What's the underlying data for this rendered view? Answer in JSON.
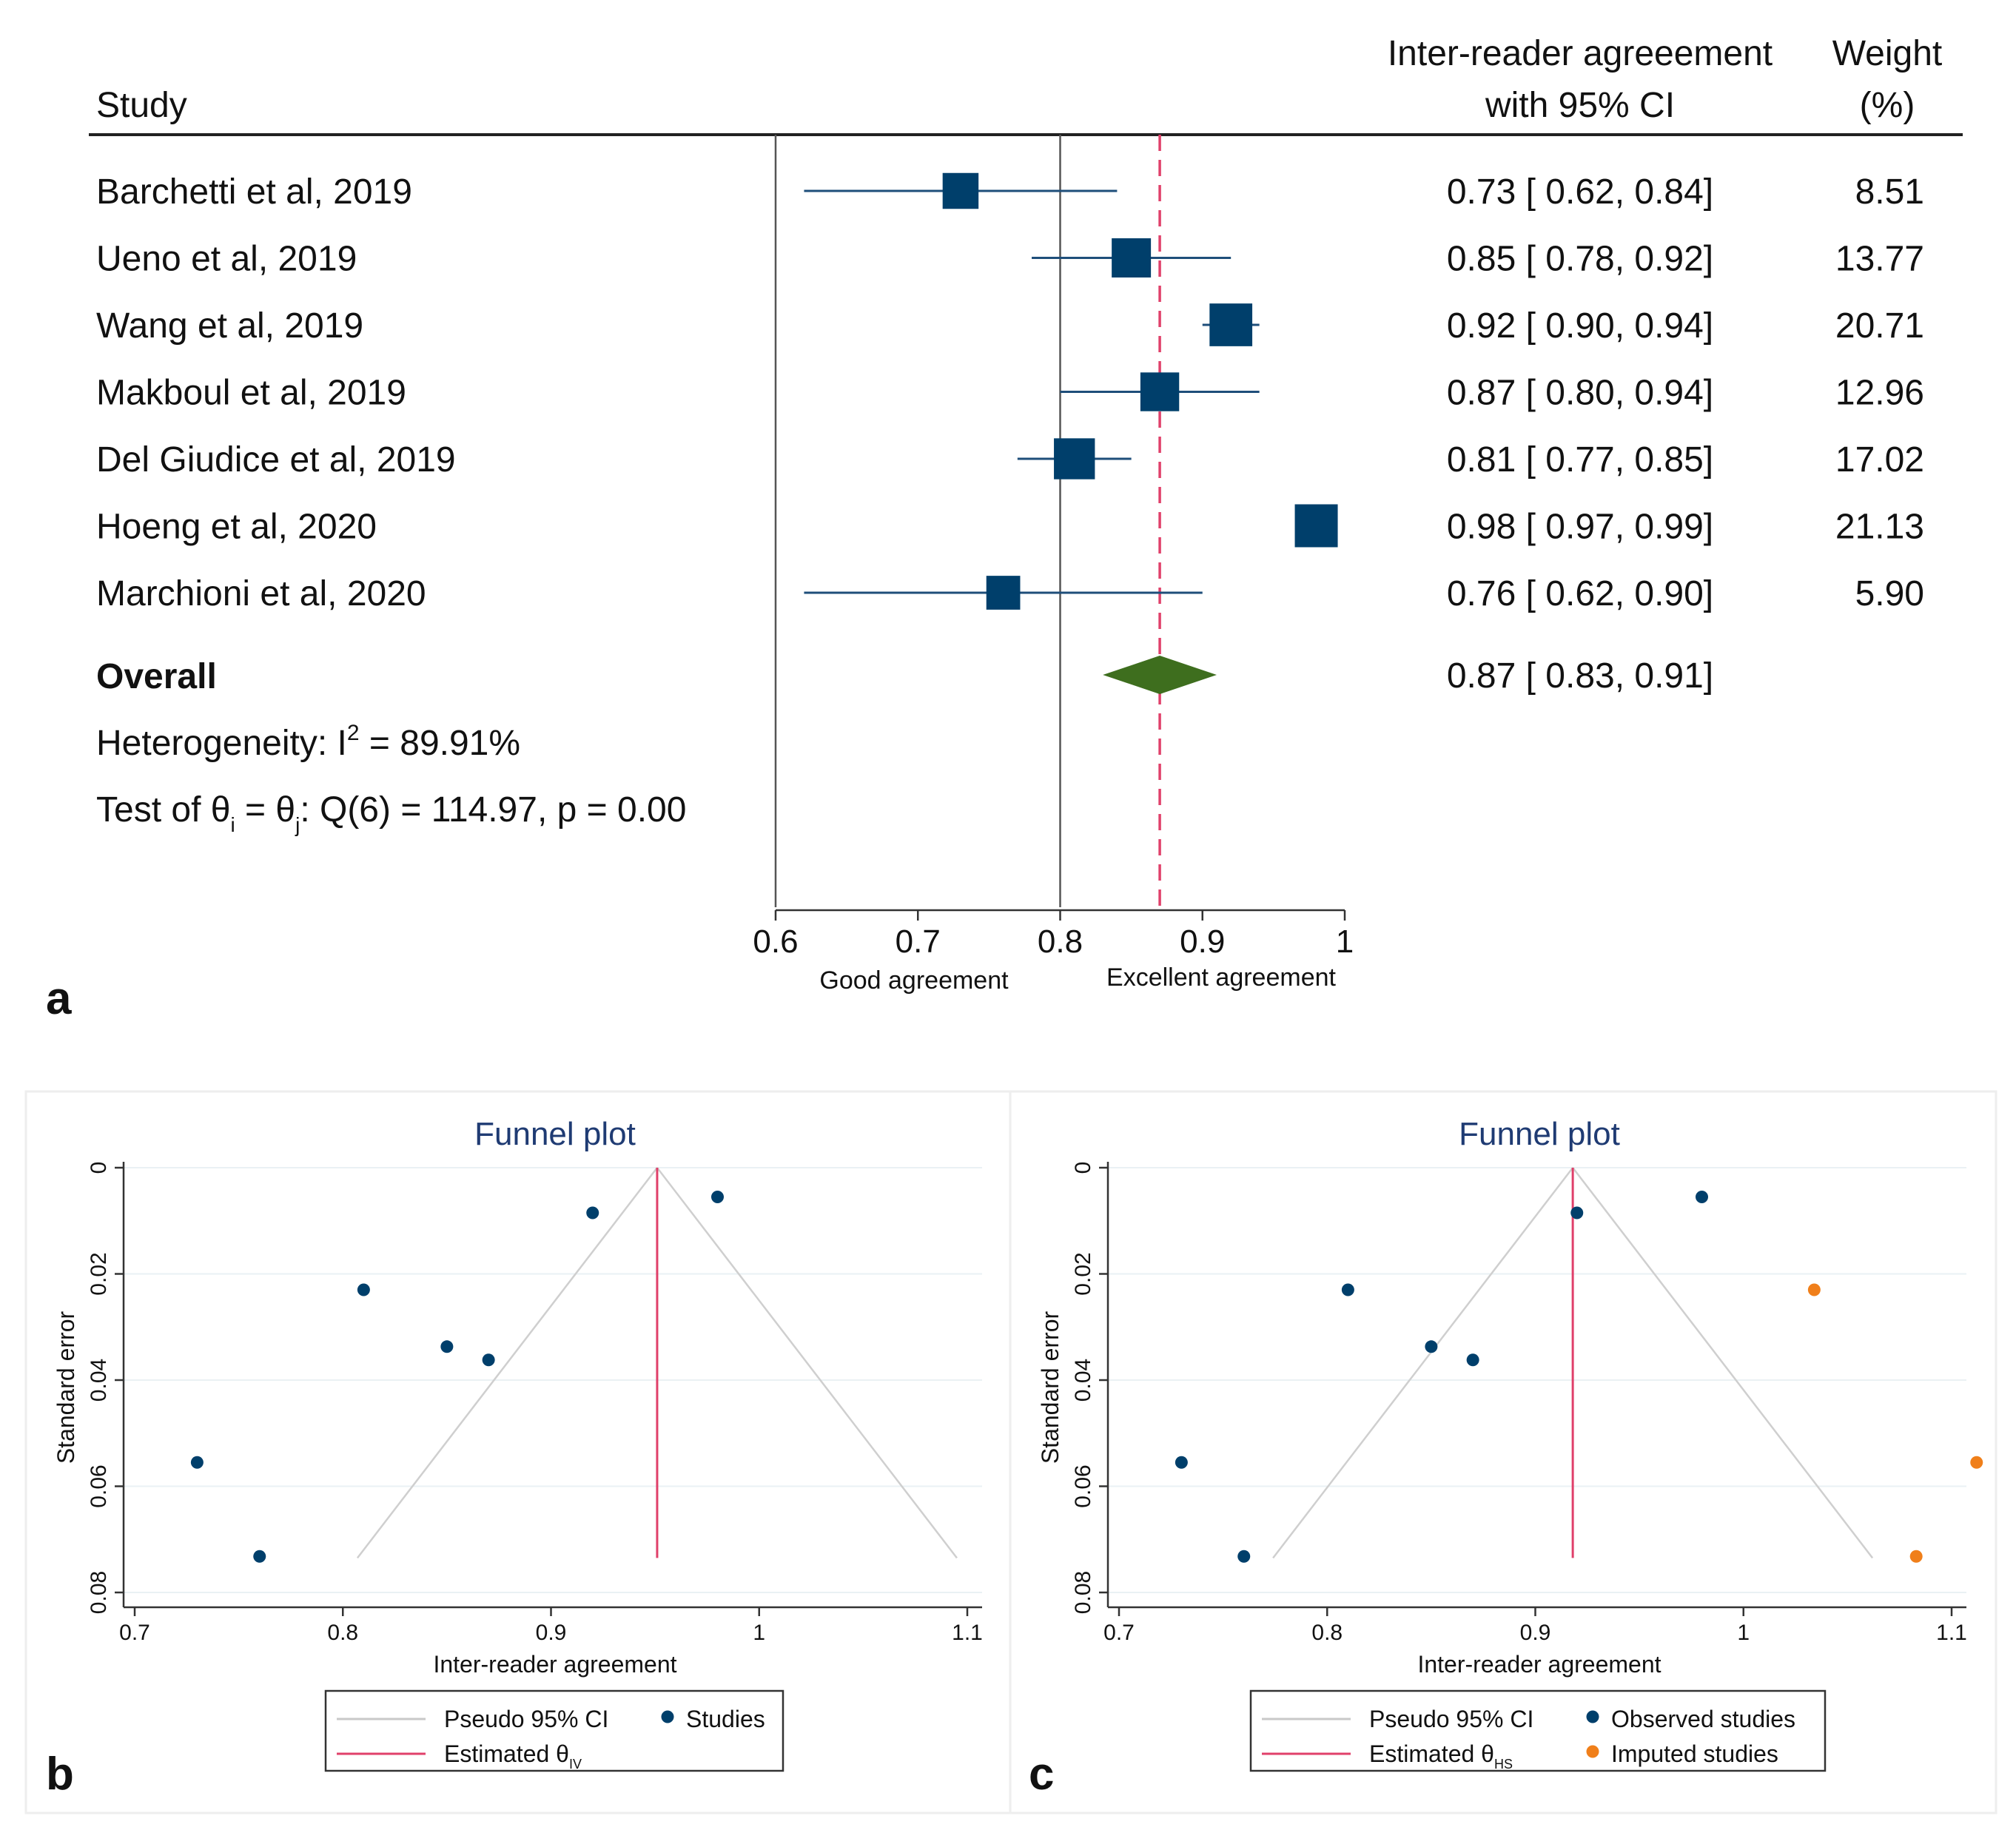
{
  "chart_data": [
    {
      "type": "forest",
      "panel_label": "a",
      "headers": {
        "study": "Study",
        "estimate_line1": "Inter-reader agreeement",
        "estimate_line2": "with 95% CI",
        "weight_line1": "Weight",
        "weight_line2": "(%)"
      },
      "studies": [
        {
          "name": "Barchetti et al, 2019",
          "estimate": 0.73,
          "lo": 0.62,
          "hi": 0.84,
          "ci_text": "0.73 [ 0.62,  0.84]",
          "weight": 8.51,
          "weight_text": "8.51"
        },
        {
          "name": "Ueno et al, 2019",
          "estimate": 0.85,
          "lo": 0.78,
          "hi": 0.92,
          "ci_text": "0.85 [ 0.78,  0.92]",
          "weight": 13.77,
          "weight_text": "13.77"
        },
        {
          "name": "Wang et al, 2019",
          "estimate": 0.92,
          "lo": 0.9,
          "hi": 0.94,
          "ci_text": "0.92 [ 0.90,  0.94]",
          "weight": 20.71,
          "weight_text": "20.71"
        },
        {
          "name": "Makboul et al, 2019",
          "estimate": 0.87,
          "lo": 0.8,
          "hi": 0.94,
          "ci_text": "0.87 [ 0.80,  0.94]",
          "weight": 12.96,
          "weight_text": "12.96"
        },
        {
          "name": "Del Giudice et al, 2019",
          "estimate": 0.81,
          "lo": 0.77,
          "hi": 0.85,
          "ci_text": "0.81 [ 0.77,  0.85]",
          "weight": 17.02,
          "weight_text": "17.02"
        },
        {
          "name": "Hoeng et al, 2020",
          "estimate": 0.98,
          "lo": 0.97,
          "hi": 0.99,
          "ci_text": "0.98 [ 0.97,  0.99]",
          "weight": 21.13,
          "weight_text": "21.13"
        },
        {
          "name": "Marchioni et al, 2020",
          "estimate": 0.76,
          "lo": 0.62,
          "hi": 0.9,
          "ci_text": "0.76 [ 0.62,  0.90]",
          "weight": 5.9,
          "weight_text": "5.90"
        }
      ],
      "overall": {
        "label": "Overall",
        "estimate": 0.87,
        "lo": 0.83,
        "hi": 0.91,
        "ci_text": "0.87 [ 0.83,  0.91]"
      },
      "heterogeneity_prefix": "Heterogeneity: I",
      "heterogeneity_sup": "2",
      "heterogeneity_value": " = 89.91%",
      "test_prefix": "Test of θ",
      "test_sub1": "i",
      "test_mid": " = θ",
      "test_sub2": "j",
      "test_suffix": ": Q(6) = 114.97, p = 0.00",
      "x_ticks": [
        0.6,
        0.7,
        0.8,
        0.9,
        1
      ],
      "x_tick_labels": [
        "0.6",
        "0.7",
        "0.8",
        "0.9",
        "1"
      ],
      "xlim": [
        0.6,
        1.0
      ],
      "reference_line": 0.8,
      "x_annotations": [
        "Good agreement",
        "Excellent agreement"
      ],
      "colors": {
        "marker": "#003f6b",
        "overall": "#3e6e1e",
        "dashed": "#e0406a"
      }
    },
    {
      "type": "scatter",
      "panel_label": "b",
      "title": "Funnel plot",
      "xlabel": "Inter-reader agreement",
      "ylabel": "Standard error",
      "xlim": [
        0.7,
        1.1
      ],
      "ylim": [
        0,
        0.08
      ],
      "x_ticks": [
        0.7,
        0.8,
        0.9,
        1,
        1.1
      ],
      "x_tick_labels": [
        "0.7",
        "0.8",
        "0.9",
        "1",
        "1.1"
      ],
      "y_ticks": [
        0,
        0.02,
        0.04,
        0.06,
        0.08
      ],
      "y_tick_labels": [
        "0",
        "0.02",
        "0.04",
        "0.06",
        "0.08"
      ],
      "estimate": 0.951,
      "pseudo_ci_bottom": [
        0.807,
        1.095
      ],
      "se_max": 0.0735,
      "series": [
        {
          "name": "Studies",
          "color": "#003f6b",
          "points": [
            {
              "x": 0.73,
              "y": 0.0555
            },
            {
              "x": 0.85,
              "y": 0.0337
            },
            {
              "x": 0.92,
              "y": 0.0085
            },
            {
              "x": 0.87,
              "y": 0.0362
            },
            {
              "x": 0.81,
              "y": 0.023
            },
            {
              "x": 0.98,
              "y": 0.0055
            },
            {
              "x": 0.76,
              "y": 0.0732
            }
          ]
        }
      ],
      "legend": {
        "ci_label": "Pseudo 95% CI",
        "est_label": "Estimated θ",
        "est_sub": "IV",
        "series_label": "Studies"
      }
    },
    {
      "type": "scatter",
      "panel_label": "c",
      "title": "Funnel plot",
      "xlabel": "Inter-reader agreement",
      "ylabel": "Standard error",
      "xlim": [
        0.7,
        1.1
      ],
      "ylim": [
        0,
        0.08
      ],
      "x_ticks": [
        0.7,
        0.8,
        0.9,
        1,
        1.1
      ],
      "x_tick_labels": [
        "0.7",
        "0.8",
        "0.9",
        "1",
        "1.1"
      ],
      "y_ticks": [
        0,
        0.02,
        0.04,
        0.06,
        0.08
      ],
      "y_tick_labels": [
        "0",
        "0.02",
        "0.04",
        "0.06",
        "0.08"
      ],
      "estimate": 0.918,
      "pseudo_ci_bottom": [
        0.774,
        1.062
      ],
      "se_max": 0.0735,
      "series": [
        {
          "name": "Observed studies",
          "color": "#003f6b",
          "points": [
            {
              "x": 0.73,
              "y": 0.0555
            },
            {
              "x": 0.85,
              "y": 0.0337
            },
            {
              "x": 0.92,
              "y": 0.0085
            },
            {
              "x": 0.87,
              "y": 0.0362
            },
            {
              "x": 0.81,
              "y": 0.023
            },
            {
              "x": 0.98,
              "y": 0.0055
            },
            {
              "x": 0.76,
              "y": 0.0732
            }
          ]
        },
        {
          "name": "Imputed studies",
          "color": "#f07f1a",
          "points": [
            {
              "x": 1.034,
              "y": 0.023
            },
            {
              "x": 1.112,
              "y": 0.0555
            },
            {
              "x": 1.083,
              "y": 0.0732
            }
          ]
        }
      ],
      "legend": {
        "ci_label": "Pseudo 95% CI",
        "est_label": "Estimated θ",
        "est_sub": "HS",
        "series_label": "Observed studies",
        "series2_label": "Imputed studies"
      }
    }
  ]
}
